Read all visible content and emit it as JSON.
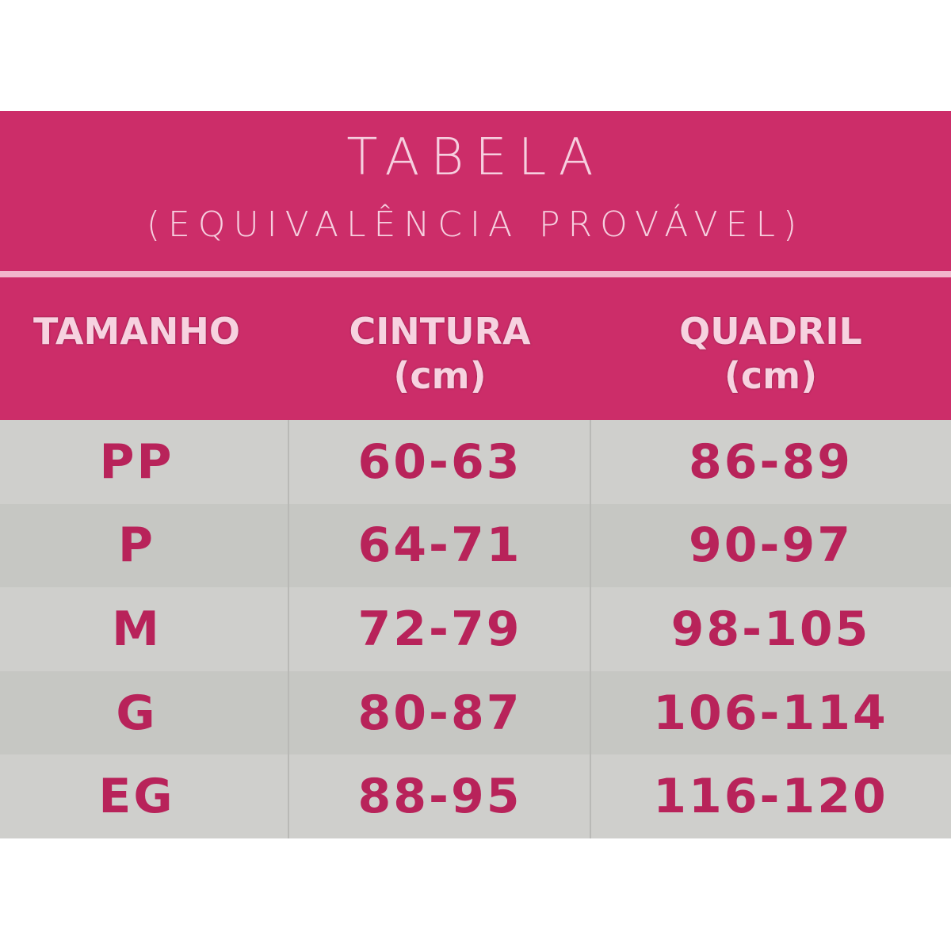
{
  "title": "TABELA",
  "subtitle": "(EQUIVALÊNCIA PROVÁVEL)",
  "headers": [
    {
      "label": "TAMANHO",
      "unit": ""
    },
    {
      "label": "CINTURA",
      "unit": "(cm)"
    },
    {
      "label": "QUADRIL",
      "unit": "(cm)"
    }
  ],
  "rows": [
    [
      "PP",
      "60-63",
      "86-89"
    ],
    [
      "P",
      "64-71",
      "90-97"
    ],
    [
      "M",
      "72-79",
      "98-105"
    ],
    [
      "G",
      "80-87",
      "106-114"
    ],
    [
      "EG",
      "88-95",
      "116-120"
    ]
  ],
  "colors": {
    "header_bg": "#cc2d69",
    "header_text": "#f6cfdf",
    "body_text": "#b8235a",
    "row_bg": "#cfcfcc"
  }
}
